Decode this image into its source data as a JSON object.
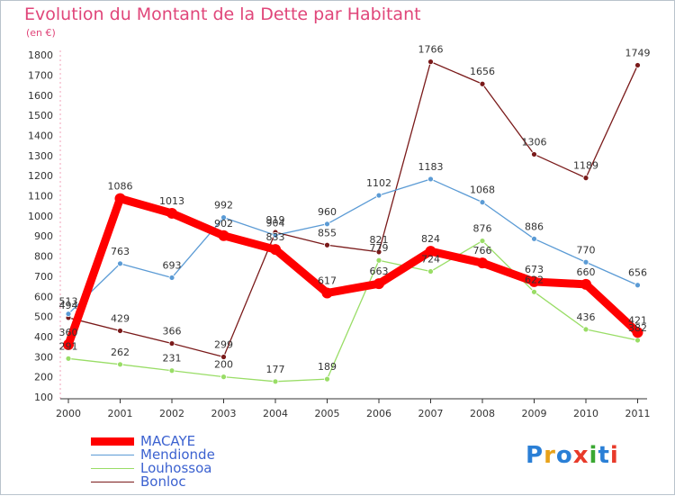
{
  "title": "Evolution du Montant de la Dette par Habitant",
  "unit": "(en €)",
  "logo": "Proxiti",
  "chart_data": {
    "type": "line",
    "title": "Evolution du Montant de la Dette par Habitant",
    "ylabel": "(en €)",
    "ylim": [
      100,
      1800
    ],
    "yticks": [
      100,
      200,
      300,
      400,
      500,
      600,
      700,
      800,
      900,
      1000,
      1100,
      1200,
      1300,
      1400,
      1500,
      1600,
      1700,
      1800
    ],
    "x": [
      "2000",
      "2001",
      "2002",
      "2003",
      "2004",
      "2005",
      "2006",
      "2007",
      "2008",
      "2009",
      "2010",
      "2011"
    ],
    "grid": false,
    "legend": "bottom-left",
    "series": [
      {
        "name": "MACAYE",
        "color": "#ff0000",
        "values": [
          360,
          1086,
          1013,
          902,
          833,
          617,
          663,
          824,
          766,
          673,
          660,
          421
        ]
      },
      {
        "name": "Mendionde",
        "color": "#5b9bd5",
        "values": [
          513,
          763,
          693,
          992,
          904,
          960,
          1102,
          1183,
          1068,
          886,
          770,
          656
        ]
      },
      {
        "name": "Louhossoa",
        "color": "#99dd66",
        "values": [
          291,
          262,
          231,
          200,
          177,
          189,
          779,
          724,
          876,
          622,
          436,
          382
        ]
      },
      {
        "name": "Bonloc",
        "color": "#7a1a1a",
        "values": [
          494,
          429,
          366,
          299,
          919,
          855,
          821,
          1766,
          1656,
          1306,
          1189,
          1749
        ]
      }
    ]
  }
}
